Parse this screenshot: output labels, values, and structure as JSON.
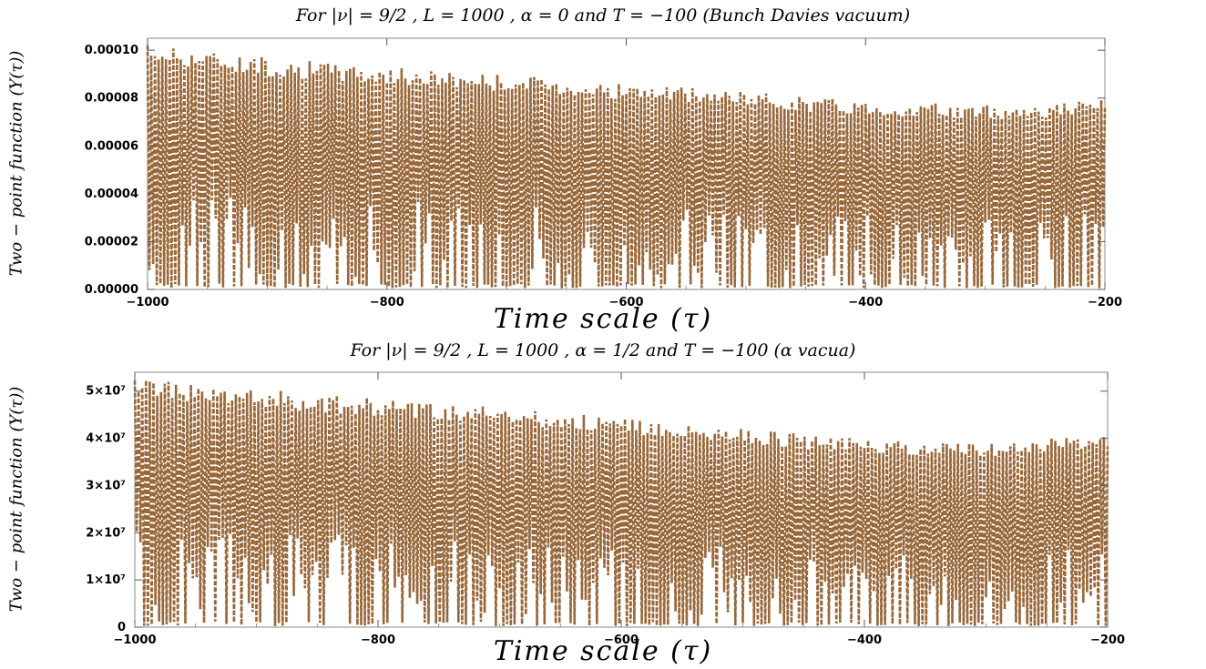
{
  "color": "#98683a",
  "chart_data": [
    {
      "type": "line",
      "style": "dense dashed oscillation",
      "title": "For |ν| = 9/2 , L = 1000 , α = 0 and T = −100 (Bunch Davies vacuum)",
      "xlabel": "Time scale  (τ)",
      "ylabel": "Two − point function (Y(τ))",
      "xlim": [
        -1000,
        -200
      ],
      "ylim": [
        0,
        0.000105
      ],
      "xticks": [
        -1000,
        -800,
        -600,
        -400,
        -200
      ],
      "xtick_labels": [
        "−1000",
        "−800",
        "−600",
        "−400",
        "−200"
      ],
      "yticks": [
        0,
        2e-05,
        4e-05,
        6e-05,
        8e-05,
        0.0001
      ],
      "ytick_labels": [
        "0.00000",
        "0.00002",
        "0.00004",
        "0.00006",
        "0.00008",
        "0.00010"
      ],
      "envelope_upper": {
        "x": [
          -1000,
          -950,
          -900,
          -850,
          -800,
          -700,
          -600,
          -500,
          -400,
          -300,
          -250,
          -200
        ],
        "y": [
          0.000103,
          0.0001,
          9.7e-05,
          9.5e-05,
          9.3e-05,
          9e-05,
          8.6e-05,
          8.3e-05,
          7.9e-05,
          7.7e-05,
          7.8e-05,
          8e-05
        ]
      },
      "envelope_lower": {
        "x": [
          -1000,
          -900,
          -800,
          -700,
          -600,
          -500,
          -400,
          -300,
          -200
        ],
        "y": [
          5e-07,
          5e-07,
          5e-07,
          5e-07,
          5e-07,
          5e-07,
          5e-07,
          5e-07,
          5e-07
        ]
      }
    },
    {
      "type": "line",
      "style": "dense dashed oscillation",
      "title": "For |ν| = 9/2 , L = 1000 , α = 1/2 and T = −100 (α vacua)",
      "xlabel": "Time scale  (τ)",
      "ylabel": "Two − point function (Y(τ))",
      "xlim": [
        -1000,
        -200
      ],
      "ylim": [
        0,
        54000000
      ],
      "xticks": [
        -1000,
        -800,
        -600,
        -400,
        -200
      ],
      "xtick_labels": [
        "−1000",
        "−800",
        "−600",
        "−400",
        "−200"
      ],
      "yticks": [
        0,
        10000000,
        20000000,
        30000000,
        40000000,
        50000000
      ],
      "ytick_labels": [
        "0",
        "1×10⁷",
        "2×10⁷",
        "3×10⁷",
        "4×10⁷",
        "5×10⁷"
      ],
      "envelope_upper": {
        "x": [
          -1000,
          -950,
          -900,
          -850,
          -800,
          -700,
          -600,
          -500,
          -400,
          -300,
          -250,
          -200
        ],
        "y": [
          53000000,
          51500000,
          50500000,
          49500000,
          48500000,
          46500000,
          44500000,
          42000000,
          40000000,
          39000000,
          40000000,
          41500000
        ]
      },
      "envelope_lower": {
        "x": [
          -1000,
          -900,
          -800,
          -700,
          -600,
          -500,
          -400,
          -300,
          -200
        ],
        "y": [
          200000,
          200000,
          200000,
          200000,
          200000,
          200000,
          200000,
          200000,
          200000
        ]
      }
    }
  ]
}
